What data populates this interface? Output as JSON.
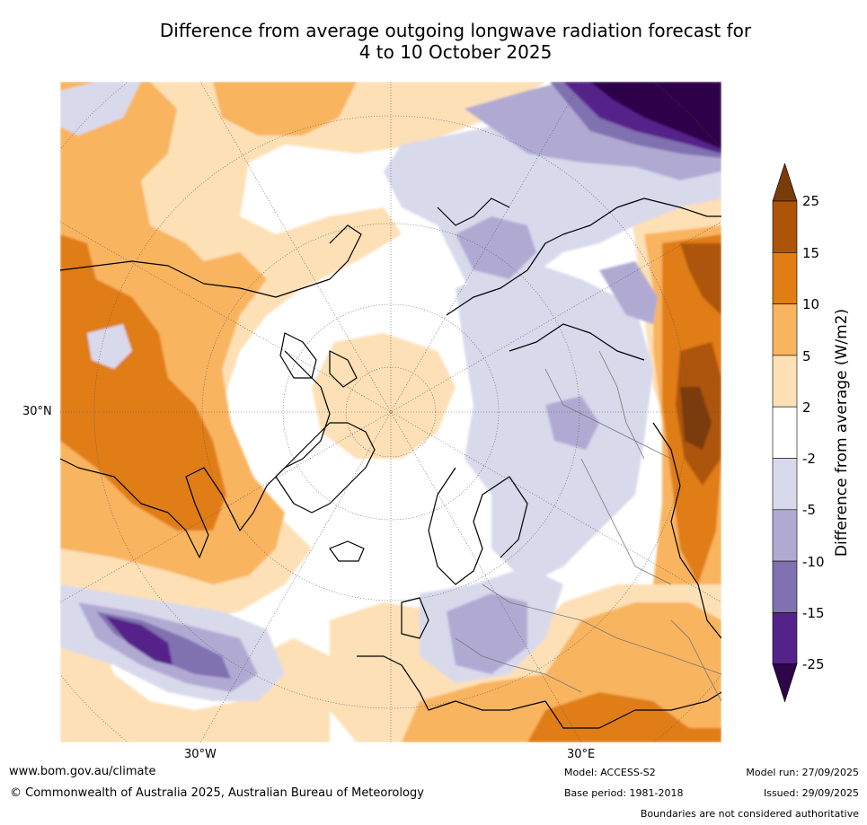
{
  "title": {
    "line1": "Difference from average outgoing longwave radiation forecast for",
    "line2": "4 to 10 October 2025"
  },
  "map": {
    "projection": "polar stereographic (Northern Hemisphere)",
    "lat_labels": [
      "30°N"
    ],
    "lon_labels": [
      "30°W",
      "30°E"
    ]
  },
  "colorbar": {
    "title": "Difference from average (W/m2)",
    "levels": [
      "25",
      "15",
      "10",
      "5",
      "2",
      "-2",
      "-5",
      "-10",
      "-15",
      "-25"
    ],
    "colors": [
      "#7a3b0a",
      "#ad5409",
      "#e07d14",
      "#f9b45f",
      "#fde0b6",
      "#ffffff",
      "#d9d9ec",
      "#b0aad3",
      "#8071b0",
      "#54238a",
      "#2e0549"
    ]
  },
  "footer": {
    "website": "www.bom.gov.au/climate",
    "copyright": "© Commonwealth of Australia 2025, Australian Bureau of Meteorology",
    "model": "Model: ACCESS-S2",
    "base_period": "Base period: 1981-2018",
    "model_run": "Model run: 27/09/2025",
    "issued": "Issued: 29/09/2025",
    "disclaimer": "Boundaries are not considered authoritative"
  }
}
